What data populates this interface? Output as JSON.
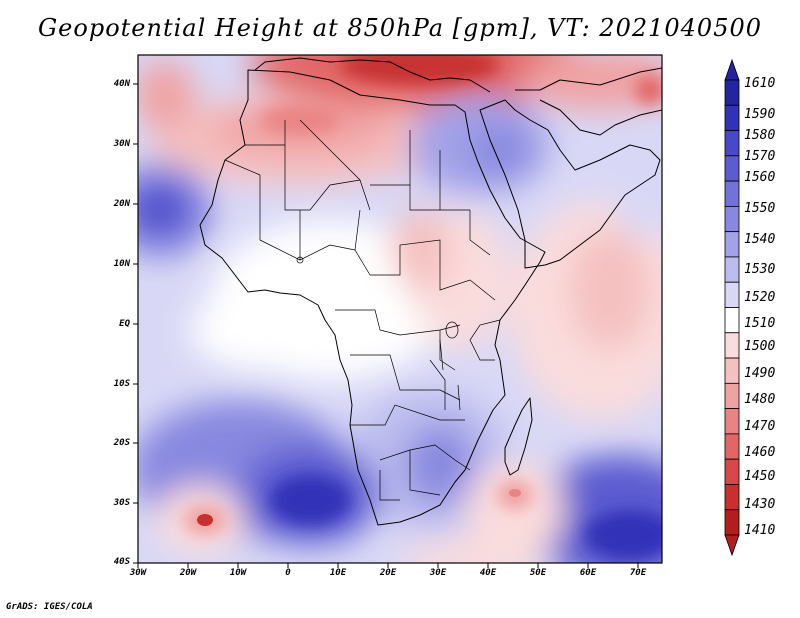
{
  "title": "Geopotential Height at 850hPa [gpm], VT: 2021040500",
  "credit": "GrADS: IGES/COLA",
  "map": {
    "variable": "Geopotential Height at 850hPa",
    "units": "gpm",
    "valid_time": "2021040500",
    "lon_range": [
      -30,
      75
    ],
    "lat_range": [
      -40,
      45
    ],
    "lat_ticks": [
      "40N",
      "30N",
      "20N",
      "10N",
      "EQ",
      "10S",
      "20S",
      "30S",
      "40S"
    ],
    "lon_ticks": [
      "30W",
      "20W",
      "10W",
      "0",
      "10E",
      "20E",
      "30E",
      "40E",
      "50E",
      "60E",
      "70E"
    ]
  },
  "colorbar": {
    "levels": [
      "1610",
      "1590",
      "1580",
      "1570",
      "1560",
      "1550",
      "1540",
      "1530",
      "1520",
      "1510",
      "1500",
      "1490",
      "1480",
      "1470",
      "1460",
      "1450",
      "1430",
      "1410"
    ],
    "colors": [
      "#2424a0",
      "#3232b8",
      "#4848c8",
      "#5c5cd0",
      "#7272d8",
      "#8888e0",
      "#a2a2e8",
      "#bcbcef",
      "#d8d8f6",
      "#ffffff",
      "#fadcdc",
      "#f5c0c0",
      "#f0a2a2",
      "#ea8484",
      "#e26666",
      "#d84848",
      "#c83030",
      "#b01e1e"
    ]
  }
}
